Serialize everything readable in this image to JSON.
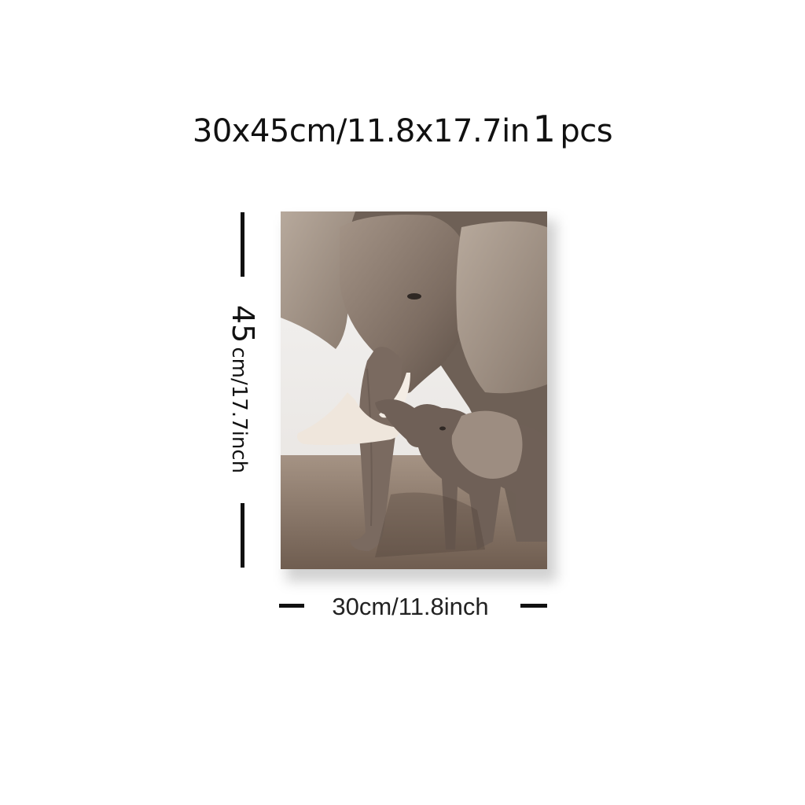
{
  "header": {
    "size_text": "30x45cm/11.8x17.7in",
    "quantity_number": "1",
    "quantity_unit": "pcs"
  },
  "dimensions": {
    "height_value": "45",
    "height_rest": "cm/17.7inch",
    "width_text": "30cm/11.8inch"
  },
  "artwork": {
    "subject": "elephant-mother-and-calf-painting",
    "colors": {
      "sky": "#f2f0ee",
      "ground": "#8a7565",
      "elephant": "#8e7c70",
      "tusk": "#efe6dc"
    }
  }
}
